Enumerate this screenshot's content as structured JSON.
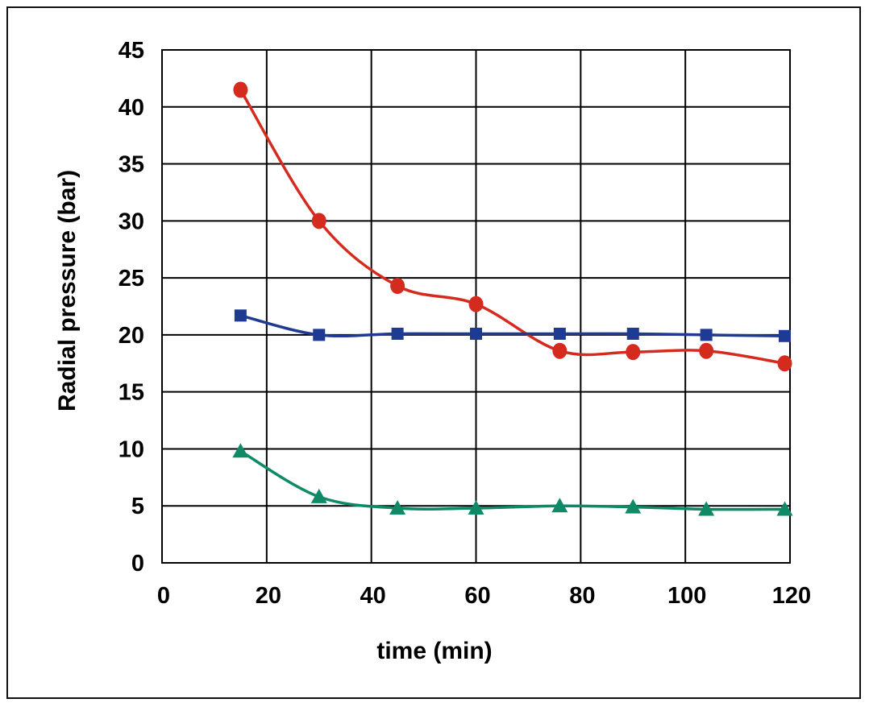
{
  "chart_data": {
    "type": "line",
    "title": "",
    "xlabel": "time (min)",
    "ylabel": "Radial pressure (bar)",
    "xlim": [
      0,
      120
    ],
    "ylim": [
      0,
      45
    ],
    "x_ticks": [
      "0",
      "20",
      "40",
      "60",
      "80",
      "100",
      "120"
    ],
    "y_ticks": [
      "0",
      "5",
      "10",
      "15",
      "20",
      "25",
      "30",
      "35",
      "40",
      "45"
    ],
    "grid": true,
    "legend": "none",
    "series": [
      {
        "marker": "circle",
        "color": "#d52b1e",
        "x": [
          15,
          30,
          45,
          60,
          76,
          90,
          104,
          119
        ],
        "y": [
          41.5,
          30.0,
          24.3,
          22.7,
          18.6,
          18.5,
          18.6,
          17.5
        ]
      },
      {
        "marker": "square",
        "color": "#1f3a93",
        "x": [
          15,
          30,
          45,
          60,
          76,
          90,
          104,
          119
        ],
        "y": [
          21.7,
          20.0,
          20.1,
          20.1,
          20.1,
          20.1,
          20.0,
          19.9
        ]
      },
      {
        "marker": "triangle",
        "color": "#0e8a66",
        "x": [
          15,
          30,
          45,
          60,
          76,
          90,
          104,
          119
        ],
        "y": [
          9.8,
          5.8,
          4.8,
          4.8,
          5.0,
          4.9,
          4.7,
          4.7
        ]
      }
    ]
  }
}
